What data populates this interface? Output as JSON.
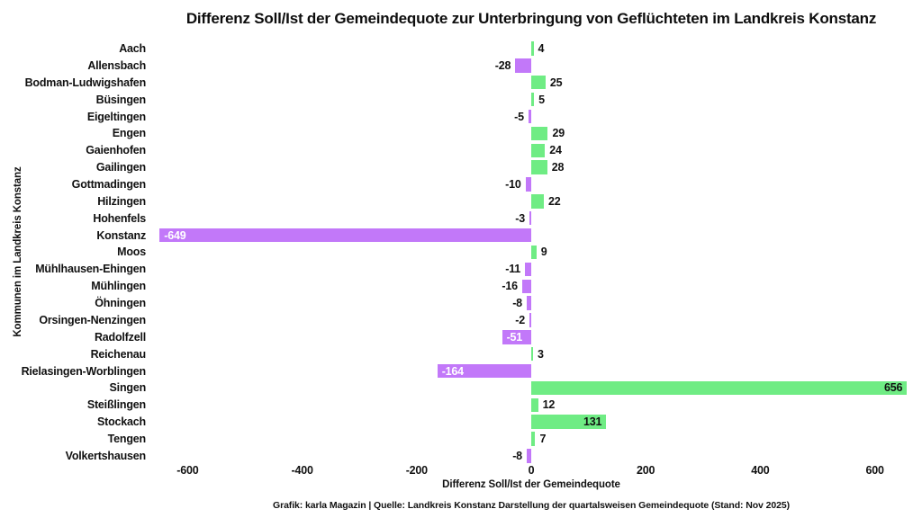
{
  "title": "Differenz Soll/Ist der Gemeindequote zur Unterbringung von Geflüchteten im Landkreis Konstanz",
  "footer": "Grafik: karla Magazin | Quelle: Landkreis Konstanz Darstellung der quartalsweisen Gemeindequote (Stand: Nov 2025)",
  "chart_data": {
    "type": "bar",
    "orientation": "horizontal",
    "title": "Differenz Soll/Ist der Gemeindequote zur Unterbringung von Geflüchteten im Landkreis Konstanz",
    "xlabel": "Differenz Soll/Ist der Gemeindequote",
    "ylabel": "Kommunen im Landkreis Konstanz",
    "categories": [
      "Aach",
      "Allensbach",
      "Bodman-Ludwigshafen",
      "Büsingen",
      "Eigeltingen",
      "Engen",
      "Gaienhofen",
      "Gailingen",
      "Gottmadingen",
      "Hilzingen",
      "Hohenfels",
      "Konstanz",
      "Moos",
      "Mühlhausen-Ehingen",
      "Mühlingen",
      "Öhningen",
      "Orsingen-Nenzingen",
      "Radolfzell",
      "Reichenau",
      "Rielasingen-Worblingen",
      "Singen",
      "Steißlingen",
      "Stockach",
      "Tengen",
      "Volkertshausen"
    ],
    "values": [
      4,
      -28,
      25,
      5,
      -5,
      29,
      24,
      28,
      -10,
      22,
      -3,
      -649,
      9,
      -11,
      -16,
      -8,
      -2,
      -51,
      3,
      -164,
      656,
      12,
      131,
      7,
      -8
    ],
    "x_ticks": [
      -600,
      -400,
      -200,
      0,
      200,
      400,
      600
    ],
    "xlim": [
      -700,
      690
    ],
    "grid": false,
    "legend": "none",
    "positive_color": "#6fec84",
    "negative_color": "#c278f9",
    "inside_label_threshold": 50,
    "inside_label_color_positive": "#111111",
    "inside_label_color_negative": "#ffffff",
    "text_color": "#111111",
    "background_color": "#ffffff"
  }
}
